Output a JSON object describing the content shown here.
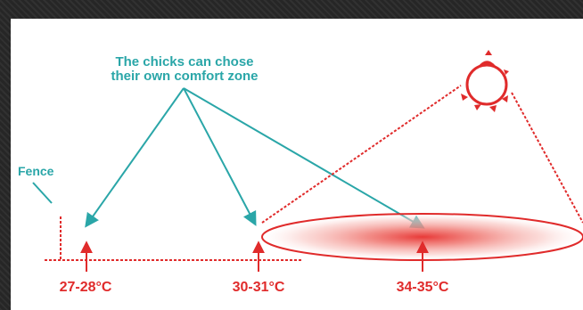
{
  "caption": {
    "line1": "The chicks can chose",
    "line2": "their own comfort zone"
  },
  "fence_label": "Fence",
  "zones": [
    {
      "label": "27-28°C"
    },
    {
      "label": "30-31°C"
    },
    {
      "label": "34-35°C"
    }
  ],
  "colors": {
    "teal": "#2aa6a8",
    "red": "#e02b2b",
    "heat_center": "#ee4a46",
    "canvas": "#ffffff"
  },
  "icons": {
    "heat_lamp": "heat-lamp-icon"
  }
}
